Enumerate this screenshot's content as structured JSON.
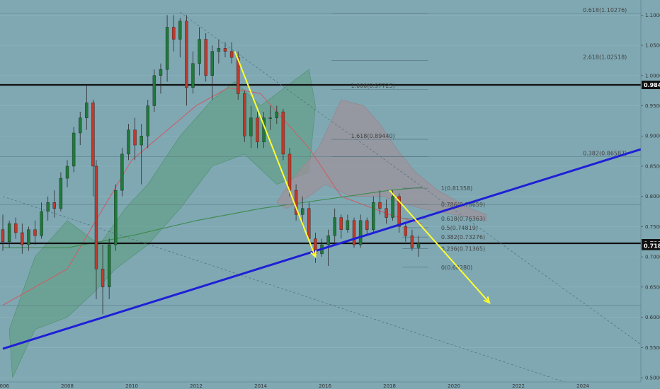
{
  "chart_data": {
    "type": "candlestick",
    "timeframe_note": "monthly-style price chart with Ichimoku cloud, moving averages, Fibonacci levels",
    "x_axis": {
      "labels": [
        "2006",
        "2008",
        "2010",
        "2012",
        "2014",
        "2016",
        "2018",
        "2020",
        "2022",
        "2024"
      ],
      "range": [
        2006,
        2025.8
      ]
    },
    "y_axis": {
      "ticks": [
        1.1,
        1.05,
        1.0,
        0.95,
        0.9,
        0.85,
        0.8,
        0.75,
        0.7,
        0.65,
        0.6,
        0.55,
        0.5
      ],
      "tick_labels": [
        "1.10000",
        "1.05000",
        "1.00000",
        "0.95000",
        "0.90000",
        "0.85000",
        "0.80000",
        "0.75000",
        "0.70000",
        "0.65000",
        "0.60000",
        "0.55000",
        "0.50000"
      ],
      "range": [
        0.493,
        1.125
      ]
    },
    "candles": [
      {
        "t": 2006.0,
        "o": 0.745,
        "h": 0.77,
        "l": 0.71,
        "c": 0.725
      },
      {
        "t": 2006.2,
        "o": 0.725,
        "h": 0.76,
        "l": 0.715,
        "c": 0.755
      },
      {
        "t": 2006.4,
        "o": 0.755,
        "h": 0.765,
        "l": 0.73,
        "c": 0.74
      },
      {
        "t": 2006.6,
        "o": 0.74,
        "h": 0.755,
        "l": 0.705,
        "c": 0.72
      },
      {
        "t": 2006.8,
        "o": 0.72,
        "h": 0.75,
        "l": 0.71,
        "c": 0.745
      },
      {
        "t": 2007.0,
        "o": 0.745,
        "h": 0.76,
        "l": 0.72,
        "c": 0.735
      },
      {
        "t": 2007.2,
        "o": 0.735,
        "h": 0.79,
        "l": 0.73,
        "c": 0.775
      },
      {
        "t": 2007.4,
        "o": 0.775,
        "h": 0.8,
        "l": 0.76,
        "c": 0.79
      },
      {
        "t": 2007.6,
        "o": 0.79,
        "h": 0.81,
        "l": 0.765,
        "c": 0.78
      },
      {
        "t": 2007.8,
        "o": 0.78,
        "h": 0.84,
        "l": 0.775,
        "c": 0.83
      },
      {
        "t": 2008.0,
        "o": 0.83,
        "h": 0.86,
        "l": 0.815,
        "c": 0.85
      },
      {
        "t": 2008.2,
        "o": 0.85,
        "h": 0.915,
        "l": 0.84,
        "c": 0.905
      },
      {
        "t": 2008.4,
        "o": 0.905,
        "h": 0.94,
        "l": 0.885,
        "c": 0.93
      },
      {
        "t": 2008.6,
        "o": 0.93,
        "h": 0.985,
        "l": 0.91,
        "c": 0.955
      },
      {
        "t": 2008.8,
        "o": 0.955,
        "h": 0.96,
        "l": 0.8,
        "c": 0.85
      },
      {
        "t": 2008.9,
        "o": 0.85,
        "h": 0.86,
        "l": 0.63,
        "c": 0.68
      },
      {
        "t": 2009.1,
        "o": 0.68,
        "h": 0.72,
        "l": 0.605,
        "c": 0.65
      },
      {
        "t": 2009.3,
        "o": 0.65,
        "h": 0.73,
        "l": 0.63,
        "c": 0.72
      },
      {
        "t": 2009.5,
        "o": 0.72,
        "h": 0.82,
        "l": 0.71,
        "c": 0.81
      },
      {
        "t": 2009.7,
        "o": 0.81,
        "h": 0.88,
        "l": 0.8,
        "c": 0.87
      },
      {
        "t": 2009.9,
        "o": 0.87,
        "h": 0.92,
        "l": 0.86,
        "c": 0.91
      },
      {
        "t": 2010.1,
        "o": 0.91,
        "h": 0.93,
        "l": 0.86,
        "c": 0.885
      },
      {
        "t": 2010.3,
        "o": 0.885,
        "h": 0.92,
        "l": 0.82,
        "c": 0.9
      },
      {
        "t": 2010.5,
        "o": 0.9,
        "h": 0.96,
        "l": 0.88,
        "c": 0.95
      },
      {
        "t": 2010.7,
        "o": 0.95,
        "h": 1.01,
        "l": 0.94,
        "c": 1.0
      },
      {
        "t": 2010.9,
        "o": 1.0,
        "h": 1.02,
        "l": 0.97,
        "c": 1.01
      },
      {
        "t": 2011.1,
        "o": 1.01,
        "h": 1.1,
        "l": 0.99,
        "c": 1.08
      },
      {
        "t": 2011.3,
        "o": 1.08,
        "h": 1.1,
        "l": 1.04,
        "c": 1.06
      },
      {
        "t": 2011.5,
        "o": 1.06,
        "h": 1.095,
        "l": 1.03,
        "c": 1.09
      },
      {
        "t": 2011.7,
        "o": 1.09,
        "h": 1.1,
        "l": 0.95,
        "c": 0.98
      },
      {
        "t": 2011.9,
        "o": 0.98,
        "h": 1.04,
        "l": 0.97,
        "c": 1.02
      },
      {
        "t": 2012.1,
        "o": 1.02,
        "h": 1.08,
        "l": 1.0,
        "c": 1.06
      },
      {
        "t": 2012.3,
        "o": 1.06,
        "h": 1.07,
        "l": 0.99,
        "c": 1.0
      },
      {
        "t": 2012.5,
        "o": 1.0,
        "h": 1.05,
        "l": 0.96,
        "c": 1.04
      },
      {
        "t": 2012.7,
        "o": 1.04,
        "h": 1.06,
        "l": 1.02,
        "c": 1.045
      },
      {
        "t": 2012.9,
        "o": 1.045,
        "h": 1.055,
        "l": 1.03,
        "c": 1.04
      },
      {
        "t": 2013.1,
        "o": 1.04,
        "h": 1.055,
        "l": 1.02,
        "c": 1.03
      },
      {
        "t": 2013.3,
        "o": 1.03,
        "h": 1.04,
        "l": 0.96,
        "c": 0.97
      },
      {
        "t": 2013.5,
        "o": 0.97,
        "h": 0.975,
        "l": 0.89,
        "c": 0.9
      },
      {
        "t": 2013.7,
        "o": 0.9,
        "h": 0.95,
        "l": 0.88,
        "c": 0.93
      },
      {
        "t": 2013.9,
        "o": 0.93,
        "h": 0.94,
        "l": 0.88,
        "c": 0.89
      },
      {
        "t": 2014.1,
        "o": 0.89,
        "h": 0.94,
        "l": 0.88,
        "c": 0.93
      },
      {
        "t": 2014.3,
        "o": 0.93,
        "h": 0.95,
        "l": 0.91,
        "c": 0.93
      },
      {
        "t": 2014.5,
        "o": 0.93,
        "h": 0.95,
        "l": 0.92,
        "c": 0.94
      },
      {
        "t": 2014.7,
        "o": 0.94,
        "h": 0.945,
        "l": 0.86,
        "c": 0.87
      },
      {
        "t": 2014.9,
        "o": 0.87,
        "h": 0.88,
        "l": 0.8,
        "c": 0.81
      },
      {
        "t": 2015.1,
        "o": 0.81,
        "h": 0.82,
        "l": 0.76,
        "c": 0.77
      },
      {
        "t": 2015.3,
        "o": 0.77,
        "h": 0.8,
        "l": 0.75,
        "c": 0.78
      },
      {
        "t": 2015.5,
        "o": 0.78,
        "h": 0.79,
        "l": 0.72,
        "c": 0.73
      },
      {
        "t": 2015.7,
        "o": 0.73,
        "h": 0.74,
        "l": 0.69,
        "c": 0.705
      },
      {
        "t": 2015.9,
        "o": 0.705,
        "h": 0.73,
        "l": 0.7,
        "c": 0.72
      },
      {
        "t": 2016.1,
        "o": 0.72,
        "h": 0.745,
        "l": 0.685,
        "c": 0.735
      },
      {
        "t": 2016.3,
        "o": 0.735,
        "h": 0.78,
        "l": 0.72,
        "c": 0.765
      },
      {
        "t": 2016.5,
        "o": 0.765,
        "h": 0.77,
        "l": 0.73,
        "c": 0.745
      },
      {
        "t": 2016.7,
        "o": 0.745,
        "h": 0.77,
        "l": 0.74,
        "c": 0.76
      },
      {
        "t": 2016.9,
        "o": 0.76,
        "h": 0.765,
        "l": 0.715,
        "c": 0.72
      },
      {
        "t": 2017.1,
        "o": 0.72,
        "h": 0.77,
        "l": 0.715,
        "c": 0.76
      },
      {
        "t": 2017.3,
        "o": 0.76,
        "h": 0.765,
        "l": 0.735,
        "c": 0.745
      },
      {
        "t": 2017.5,
        "o": 0.745,
        "h": 0.8,
        "l": 0.74,
        "c": 0.79
      },
      {
        "t": 2017.7,
        "o": 0.79,
        "h": 0.81,
        "l": 0.77,
        "c": 0.78
      },
      {
        "t": 2017.9,
        "o": 0.78,
        "h": 0.795,
        "l": 0.755,
        "c": 0.765
      },
      {
        "t": 2018.1,
        "o": 0.765,
        "h": 0.81,
        "l": 0.76,
        "c": 0.8
      },
      {
        "t": 2018.3,
        "o": 0.8,
        "h": 0.805,
        "l": 0.74,
        "c": 0.75
      },
      {
        "t": 2018.5,
        "o": 0.75,
        "h": 0.755,
        "l": 0.725,
        "c": 0.735
      },
      {
        "t": 2018.7,
        "o": 0.735,
        "h": 0.745,
        "l": 0.71,
        "c": 0.715
      },
      {
        "t": 2018.9,
        "o": 0.715,
        "h": 0.735,
        "l": 0.7,
        "c": 0.722
      }
    ],
    "horizontal_levels": [
      {
        "value": 0.98452,
        "label": "0.98452",
        "style": "thick-black"
      },
      {
        "value": 0.72241,
        "label": "0.72241",
        "style": "thick-black"
      },
      {
        "value": 0.71808,
        "label": "0.71808",
        "style": "marker"
      }
    ],
    "fib_levels_top": [
      {
        "value": 1.10276,
        "label": "0.618(1.10276)"
      },
      {
        "value": 1.02518,
        "label": "2.618(1.02518)"
      },
      {
        "value": 0.97725,
        "label": "1.000(0.97725)"
      },
      {
        "value": 0.8944,
        "label": "1.618(0.89440)"
      },
      {
        "value": 0.86587,
        "label": "0.382(0.86587)"
      }
    ],
    "fib_levels_bottom": [
      {
        "value": 0.81358,
        "label": "1(0.81358)"
      },
      {
        "value": 0.78659,
        "label": "0.786(0.78659)"
      },
      {
        "value": 0.76363,
        "label": "0.618(0.76363)"
      },
      {
        "value": 0.74819,
        "label": "0.5(0.74819)"
      },
      {
        "value": 0.73276,
        "label": "0.382(0.73276)"
      },
      {
        "value": 0.71365,
        "label": "0.236(0.71365)"
      },
      {
        "value": 0.6828,
        "label": "0(0.68280)"
      }
    ],
    "trend_line": {
      "from": {
        "t": 2006,
        "v": 0.548
      },
      "to": {
        "t": 2025.8,
        "v": 0.878
      },
      "color": "#1f1fd6"
    },
    "arrows": [
      {
        "from": {
          "t": 2013.2,
          "v": 1.04
        },
        "to": {
          "t": 2015.7,
          "v": 0.7
        },
        "color": "#ffff33"
      },
      {
        "from": {
          "t": 2018.0,
          "v": 0.81
        },
        "to": {
          "t": 2021.1,
          "v": 0.624
        },
        "color": "#ffff33"
      }
    ],
    "moving_averages": [
      {
        "name": "",
        "color": "#c8606a",
        "points": [
          [
            2006,
            0.62
          ],
          [
            2008,
            0.68
          ],
          [
            2010,
            0.86
          ],
          [
            2012,
            0.95
          ],
          [
            2013,
            0.98
          ],
          [
            2014,
            0.97
          ],
          [
            2015.5,
            0.88
          ],
          [
            2016.5,
            0.8
          ],
          [
            2018,
            0.77
          ],
          [
            2019,
            0.755
          ]
        ]
      },
      {
        "name": "",
        "color": "#3e8a4e",
        "points": [
          [
            2006,
            0.715
          ],
          [
            2008,
            0.715
          ],
          [
            2010,
            0.735
          ],
          [
            2012,
            0.76
          ],
          [
            2014,
            0.78
          ],
          [
            2016,
            0.795
          ],
          [
            2018,
            0.81
          ],
          [
            2019,
            0.815
          ]
        ]
      }
    ],
    "ichimoku_cloud_note": "green (bullish) and grey/red (bearish) cloud bands"
  }
}
